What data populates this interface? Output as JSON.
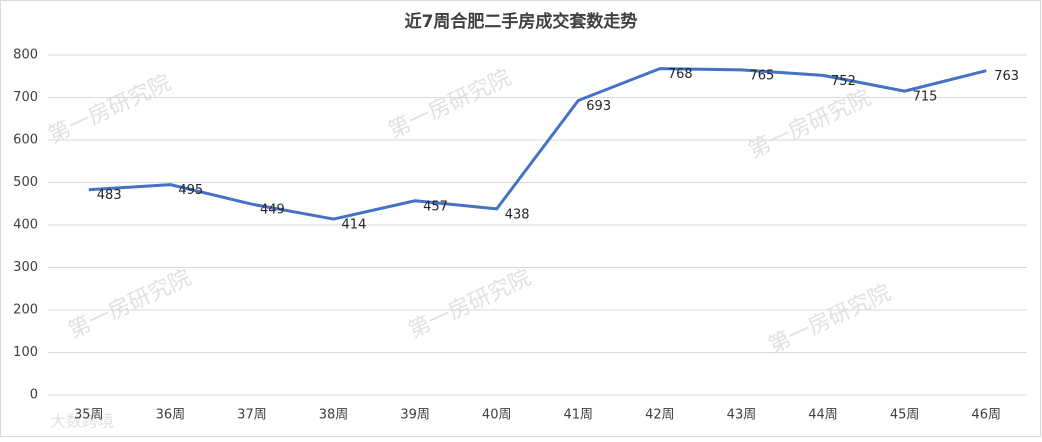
{
  "chart_data": {
    "type": "line",
    "title": "近7周合肥二手房成交套数走势",
    "categories": [
      "35周",
      "36周",
      "37周",
      "38周",
      "39周",
      "40周",
      "41周",
      "42周",
      "43周",
      "44周",
      "45周",
      "46周"
    ],
    "series": [
      {
        "name": "成交套数",
        "color": "#4472c4",
        "values": [
          483,
          495,
          449,
          414,
          457,
          438,
          693,
          768,
          765,
          752,
          715,
          763
        ]
      }
    ],
    "ylim": [
      0,
      800
    ],
    "yticks": [
      0,
      100,
      200,
      300,
      400,
      500,
      600,
      700,
      800
    ],
    "grid": true,
    "watermark": "第一房研究院",
    "corner_watermark": "大数跨境"
  }
}
